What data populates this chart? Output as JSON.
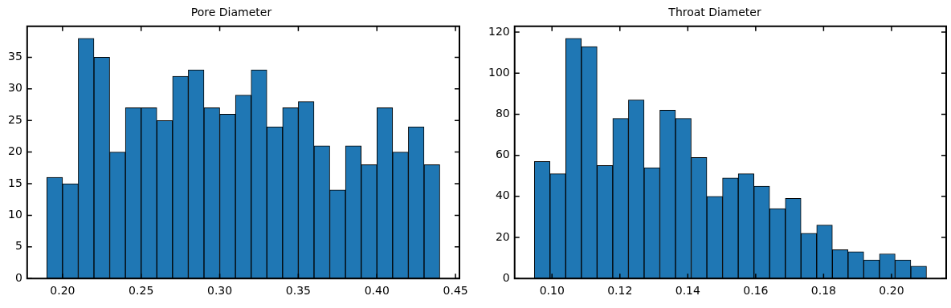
{
  "chart_data": [
    {
      "type": "histogram",
      "title": "Pore Diameter",
      "color": "#1f77b4",
      "bins": [
        0.19,
        0.2,
        0.21,
        0.22,
        0.23,
        0.24,
        0.25,
        0.26,
        0.27,
        0.28,
        0.29,
        0.3,
        0.31,
        0.32,
        0.33,
        0.34,
        0.35,
        0.36,
        0.37,
        0.38,
        0.39,
        0.4,
        0.41,
        0.42,
        0.43,
        0.44
      ],
      "values": [
        16,
        15,
        38,
        35,
        20,
        27,
        27,
        25,
        32,
        33,
        27,
        26,
        29,
        33,
        24,
        27,
        28,
        21,
        14,
        21,
        18,
        27,
        20,
        24,
        18
      ],
      "xlim": [
        0.1775,
        0.4525
      ],
      "xticks": [
        {
          "value": 0.2,
          "label": "0.20"
        },
        {
          "value": 0.25,
          "label": "0.25"
        },
        {
          "value": 0.3,
          "label": "0.30"
        },
        {
          "value": 0.35,
          "label": "0.35"
        },
        {
          "value": 0.4,
          "label": "0.40"
        },
        {
          "value": 0.45,
          "label": "0.45"
        }
      ],
      "ylim": [
        0,
        39.9
      ],
      "yticks": [
        0,
        5,
        10,
        15,
        20,
        25,
        30,
        35
      ]
    },
    {
      "type": "histogram",
      "title": "Throat Diameter",
      "color": "#1f77b4",
      "bins": [
        0.0948,
        0.09942,
        0.10404,
        0.10866,
        0.11328,
        0.1179,
        0.12252,
        0.12714,
        0.13176,
        0.13638,
        0.141,
        0.14562,
        0.15024,
        0.15486,
        0.15948,
        0.1641,
        0.16872,
        0.17334,
        0.17796,
        0.18258,
        0.1872,
        0.19182,
        0.19644,
        0.20106,
        0.20568,
        0.2103
      ],
      "values": [
        57,
        51,
        117,
        113,
        55,
        78,
        87,
        54,
        82,
        78,
        59,
        40,
        49,
        51,
        45,
        34,
        39,
        22,
        26,
        14,
        13,
        9,
        12,
        9,
        6
      ],
      "xlim": [
        0.089,
        0.2161
      ],
      "xticks": [
        {
          "value": 0.1,
          "label": "0.10"
        },
        {
          "value": 0.12,
          "label": "0.12"
        },
        {
          "value": 0.14,
          "label": "0.14"
        },
        {
          "value": 0.16,
          "label": "0.16"
        },
        {
          "value": 0.18,
          "label": "0.18"
        },
        {
          "value": 0.2,
          "label": "0.20"
        }
      ],
      "ylim": [
        0,
        122.85
      ],
      "yticks": [
        0,
        20,
        40,
        60,
        80,
        100,
        120
      ]
    }
  ]
}
